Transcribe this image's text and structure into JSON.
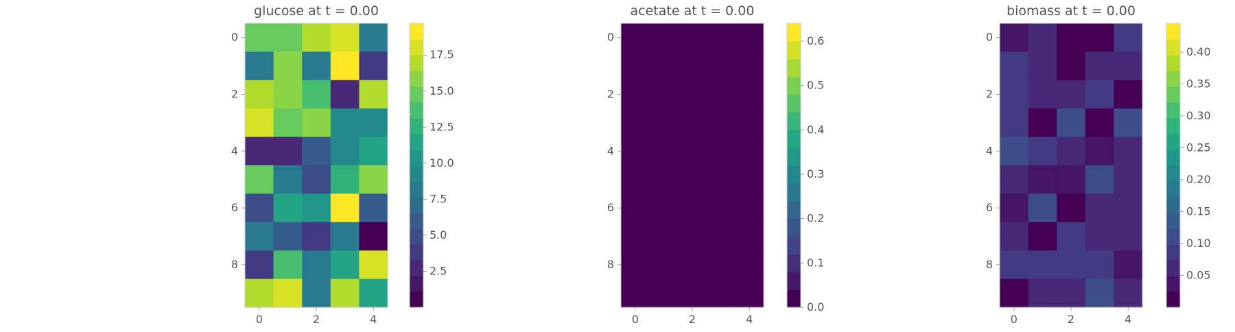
{
  "chart_data": [
    {
      "type": "heatmap",
      "title": "glucose at t = 0.00",
      "colormap": "viridis",
      "x_ticks": [
        "0",
        "2",
        "4"
      ],
      "y_ticks": [
        "0",
        "2",
        "4",
        "6",
        "8"
      ],
      "colorbar": {
        "min": 0.0,
        "max": 19.7,
        "ticks": [
          "2.5",
          "5.0",
          "7.5",
          "10.0",
          "12.5",
          "15.0",
          "17.5"
        ],
        "levels": 18
      },
      "values": [
        [
          14.3,
          14.8,
          16.5,
          18.3,
          8.0
        ],
        [
          8.0,
          15.6,
          8.0,
          19.3,
          3.5
        ],
        [
          17.5,
          16.2,
          14.2,
          3.0,
          17.4
        ],
        [
          18.4,
          15.1,
          16.3,
          9.0,
          9.0
        ],
        [
          3.0,
          2.8,
          6.0,
          9.0,
          12.0
        ],
        [
          14.5,
          8.0,
          5.2,
          12.5,
          16.0
        ],
        [
          4.5,
          12.0,
          10.0,
          19.5,
          6.0
        ],
        [
          8.0,
          6.5,
          4.0,
          8.0,
          0.3
        ],
        [
          3.5,
          14.0,
          8.0,
          11.5,
          18.0
        ],
        [
          17.5,
          18.0,
          8.5,
          17.5,
          11.0
        ]
      ]
    },
    {
      "type": "heatmap",
      "title": "acetate at t = 0.00",
      "colormap": "viridis",
      "x_ticks": [
        "0",
        "2",
        "4"
      ],
      "y_ticks": [
        "0",
        "2",
        "4",
        "6",
        "8"
      ],
      "colorbar": {
        "min": 0.0,
        "max": 0.64,
        "ticks": [
          "0.0",
          "0.1",
          "0.2",
          "0.3",
          "0.4",
          "0.5",
          "0.6"
        ],
        "levels": 16
      },
      "values": [
        [
          0,
          0,
          0,
          0,
          0
        ],
        [
          0,
          0,
          0,
          0,
          0
        ],
        [
          0,
          0,
          0,
          0,
          0
        ],
        [
          0,
          0,
          0,
          0,
          0
        ],
        [
          0,
          0,
          0,
          0,
          0
        ],
        [
          0,
          0,
          0,
          0,
          0
        ],
        [
          0,
          0,
          0,
          0,
          0
        ],
        [
          0,
          0,
          0,
          0,
          0
        ],
        [
          0,
          0,
          0,
          0,
          0
        ],
        [
          0,
          0,
          0,
          0,
          0
        ]
      ]
    },
    {
      "type": "heatmap",
      "title": "biomass at t = 0.00",
      "colormap": "viridis",
      "x_ticks": [
        "0",
        "2",
        "4"
      ],
      "y_ticks": [
        "0",
        "2",
        "4",
        "6",
        "8"
      ],
      "colorbar": {
        "min": 0.0,
        "max": 0.445,
        "ticks": [
          "0.05",
          "0.10",
          "0.15",
          "0.20",
          "0.25",
          "0.30",
          "0.35",
          "0.40"
        ],
        "levels": 18
      },
      "values": [
        [
          0.03,
          0.06,
          0.0,
          0.0,
          0.09
        ],
        [
          0.09,
          0.07,
          0.01,
          0.06,
          0.05
        ],
        [
          0.09,
          0.05,
          0.05,
          0.08,
          0.02
        ],
        [
          0.08,
          0.01,
          0.1,
          0.01,
          0.11
        ],
        [
          0.11,
          0.08,
          0.07,
          0.03,
          0.05
        ],
        [
          0.05,
          0.03,
          0.03,
          0.11,
          0.05
        ],
        [
          0.03,
          0.1,
          0.01,
          0.06,
          0.05
        ],
        [
          0.07,
          0.01,
          0.09,
          0.05,
          0.07
        ],
        [
          0.08,
          0.09,
          0.09,
          0.09,
          0.03
        ],
        [
          0.01,
          0.06,
          0.06,
          0.1,
          0.06
        ]
      ]
    }
  ]
}
